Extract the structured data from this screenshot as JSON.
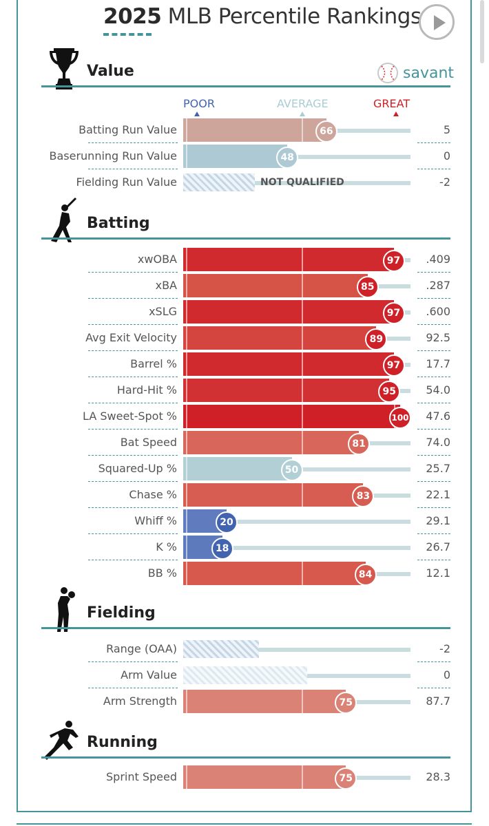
{
  "title": {
    "year": "2025",
    "rest": "MLB Percentile Rankings"
  },
  "brand": "savant",
  "legend": {
    "poor": "POOR",
    "average": "AVERAGE",
    "great": "GREAT"
  },
  "colors": {
    "accent": "#43959a",
    "great": "#cf2028",
    "poor": "#4163b0",
    "average": "#a9cdd4"
  },
  "sections": [
    {
      "title": "Value",
      "icon": "trophy-icon",
      "rows": [
        {
          "label": "Batting Run Value",
          "pct": 66,
          "value": "5"
        },
        {
          "label": "Baserunning Run Value",
          "pct": 48,
          "value": "0"
        },
        {
          "label": "Fielding Run Value",
          "pct": null,
          "value": "-2",
          "note": "NOT QUALIFIED"
        }
      ]
    },
    {
      "title": "Batting",
      "icon": "batter-icon",
      "rows": [
        {
          "label": "xwOBA",
          "pct": 97,
          "value": ".409"
        },
        {
          "label": "xBA",
          "pct": 85,
          "value": ".287"
        },
        {
          "label": "xSLG",
          "pct": 97,
          "value": ".600"
        },
        {
          "label": "Avg Exit Velocity",
          "pct": 89,
          "value": "92.5"
        },
        {
          "label": "Barrel %",
          "pct": 97,
          "value": "17.7"
        },
        {
          "label": "Hard-Hit %",
          "pct": 95,
          "value": "54.0"
        },
        {
          "label": "LA Sweet-Spot %",
          "pct": 100,
          "value": "47.6"
        },
        {
          "label": "Bat Speed",
          "pct": 81,
          "value": "74.0"
        },
        {
          "label": "Squared-Up %",
          "pct": 50,
          "value": "25.7"
        },
        {
          "label": "Chase %",
          "pct": 83,
          "value": "22.1"
        },
        {
          "label": "Whiff %",
          "pct": 20,
          "value": "29.1"
        },
        {
          "label": "K %",
          "pct": 18,
          "value": "26.7"
        },
        {
          "label": "BB %",
          "pct": 84,
          "value": "12.1"
        }
      ]
    },
    {
      "title": "Fielding",
      "icon": "fielder-icon",
      "rows": [
        {
          "label": "Range (OAA)",
          "pct": null,
          "value": "-2"
        },
        {
          "label": "Arm Value",
          "pct": null,
          "value": "0"
        },
        {
          "label": "Arm Strength",
          "pct": 75,
          "value": "87.7"
        }
      ]
    },
    {
      "title": "Running",
      "icon": "runner-icon",
      "rows": [
        {
          "label": "Sprint Speed",
          "pct": 75,
          "value": "28.3"
        }
      ]
    }
  ]
}
